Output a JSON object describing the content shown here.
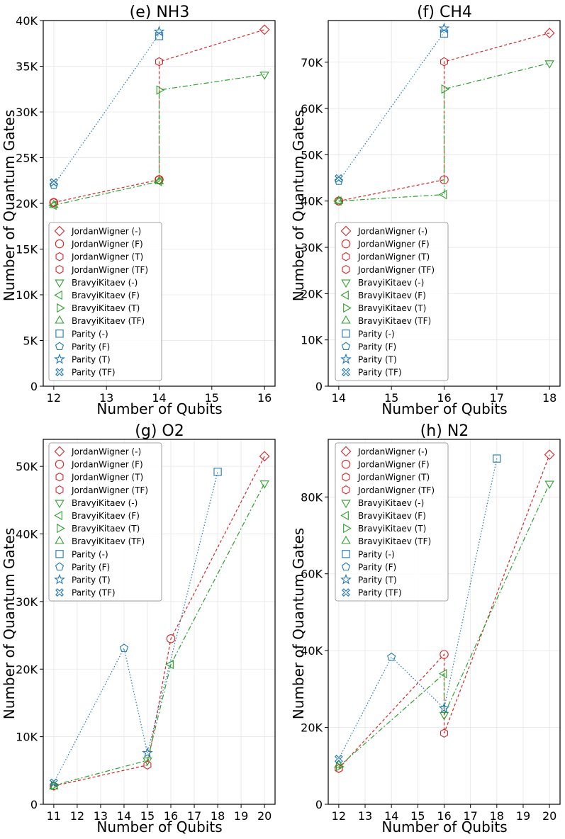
{
  "styles": {
    "JordanWigner": {
      "color": "#d62728",
      "dash": "4,3"
    },
    "BravyiKitaev": {
      "color": "#2ca02c",
      "dash": "7,3,2,3"
    },
    "Parity": {
      "color": "#1f77b4",
      "dash": "1.5,2.5"
    }
  },
  "chart_data": [
    {
      "type": "line",
      "title": "(e) NH3",
      "xlabel": "Number of Qubits",
      "ylabel": "Number of Quantum Gates",
      "xlim": [
        11.8,
        16.2
      ],
      "ylim": [
        0,
        40000
      ],
      "xticks": [
        12,
        13,
        14,
        15,
        16
      ],
      "yticks": [
        0,
        5000,
        10000,
        15000,
        20000,
        25000,
        30000,
        35000,
        40000
      ],
      "ytick_labels": [
        "0",
        "5K",
        "10K",
        "15K",
        "20K",
        "25K",
        "30K",
        "35K",
        "40K"
      ],
      "legend": "bottom-left",
      "series": [
        {
          "name": "JordanWigner (-)",
          "family": "JordanWigner",
          "marker": "diamond",
          "x": [
            16
          ],
          "y": [
            39000
          ]
        },
        {
          "name": "JordanWigner (F)",
          "family": "JordanWigner",
          "marker": "circle",
          "x": [
            12,
            14
          ],
          "y": [
            20100,
            22600
          ]
        },
        {
          "name": "JordanWigner (T)",
          "family": "JordanWigner",
          "marker": "hexagon",
          "x": [
            14
          ],
          "y": [
            35500
          ]
        },
        {
          "name": "JordanWigner (TF)",
          "family": "JordanWigner",
          "marker": "hexagon",
          "x": [
            12,
            14
          ],
          "y": [
            20100,
            22600
          ]
        },
        {
          "name": "BravyiKitaev (-)",
          "family": "BravyiKitaev",
          "marker": "tri_down",
          "x": [
            16
          ],
          "y": [
            34100
          ]
        },
        {
          "name": "BravyiKitaev (F)",
          "family": "BravyiKitaev",
          "marker": "tri_left",
          "x": [
            12,
            14
          ],
          "y": [
            19800,
            22400
          ]
        },
        {
          "name": "BravyiKitaev (T)",
          "family": "BravyiKitaev",
          "marker": "tri_right",
          "x": [
            14
          ],
          "y": [
            32400
          ]
        },
        {
          "name": "BravyiKitaev (TF)",
          "family": "BravyiKitaev",
          "marker": "tri_up",
          "x": [
            12,
            14
          ],
          "y": [
            19800,
            22400
          ]
        },
        {
          "name": "Parity (-)",
          "family": "Parity",
          "marker": "square",
          "x": [
            14
          ],
          "y": [
            38300
          ]
        },
        {
          "name": "Parity (F)",
          "family": "Parity",
          "marker": "pentagon",
          "x": [
            12
          ],
          "y": [
            22000
          ]
        },
        {
          "name": "Parity (T)",
          "family": "Parity",
          "marker": "star",
          "x": [
            14
          ],
          "y": [
            38800
          ]
        },
        {
          "name": "Parity (TF)",
          "family": "Parity",
          "marker": "xfilled",
          "x": [
            12
          ],
          "y": [
            22300
          ]
        }
      ],
      "lines": [
        {
          "family": "JordanWigner",
          "x": [
            12,
            14,
            14,
            16
          ],
          "y": [
            20100,
            22600,
            35500,
            39000
          ]
        },
        {
          "family": "BravyiKitaev",
          "x": [
            12,
            14,
            14,
            16
          ],
          "y": [
            19800,
            22400,
            32400,
            34100
          ]
        },
        {
          "family": "Parity",
          "x": [
            12,
            14
          ],
          "y": [
            22000,
            38500
          ]
        }
      ]
    },
    {
      "type": "line",
      "title": "(f) CH4",
      "xlabel": "Number of Qubits",
      "ylabel": "Number of Quantum Gates",
      "xlim": [
        13.8,
        18.2
      ],
      "ylim": [
        0,
        79000
      ],
      "xticks": [
        14,
        15,
        16,
        17,
        18
      ],
      "yticks": [
        0,
        10000,
        20000,
        30000,
        40000,
        50000,
        60000,
        70000
      ],
      "ytick_labels": [
        "0",
        "10K",
        "20K",
        "30K",
        "40K",
        "50K",
        "60K",
        "70K"
      ],
      "legend": "bottom-left",
      "series": [
        {
          "name": "JordanWigner (-)",
          "family": "JordanWigner",
          "marker": "diamond",
          "x": [
            18
          ],
          "y": [
            76300
          ]
        },
        {
          "name": "JordanWigner (F)",
          "family": "JordanWigner",
          "marker": "circle",
          "x": [
            14,
            16
          ],
          "y": [
            40000,
            44600
          ]
        },
        {
          "name": "JordanWigner (T)",
          "family": "JordanWigner",
          "marker": "hexagon",
          "x": [
            16
          ],
          "y": [
            70100
          ]
        },
        {
          "name": "JordanWigner (TF)",
          "family": "JordanWigner",
          "marker": "hexagon",
          "x": [
            14
          ],
          "y": [
            40000
          ]
        },
        {
          "name": "BravyiKitaev (-)",
          "family": "BravyiKitaev",
          "marker": "tri_down",
          "x": [
            18
          ],
          "y": [
            69800
          ]
        },
        {
          "name": "BravyiKitaev (F)",
          "family": "BravyiKitaev",
          "marker": "tri_left",
          "x": [
            14,
            16
          ],
          "y": [
            40000,
            41400
          ]
        },
        {
          "name": "BravyiKitaev (T)",
          "family": "BravyiKitaev",
          "marker": "tri_right",
          "x": [
            16
          ],
          "y": [
            64200
          ]
        },
        {
          "name": "BravyiKitaev (TF)",
          "family": "BravyiKitaev",
          "marker": "tri_up",
          "x": [
            14
          ],
          "y": [
            40000
          ]
        },
        {
          "name": "Parity (-)",
          "family": "Parity",
          "marker": "square",
          "x": [
            16
          ],
          "y": [
            76200
          ]
        },
        {
          "name": "Parity (F)",
          "family": "Parity",
          "marker": "pentagon",
          "x": [
            14
          ],
          "y": [
            44300
          ]
        },
        {
          "name": "Parity (T)",
          "family": "Parity",
          "marker": "star",
          "x": [
            16
          ],
          "y": [
            77300
          ]
        },
        {
          "name": "Parity (TF)",
          "family": "Parity",
          "marker": "xfilled",
          "x": [
            14
          ],
          "y": [
            44900
          ]
        }
      ],
      "lines": [
        {
          "family": "JordanWigner",
          "x": [
            14,
            16,
            16,
            18
          ],
          "y": [
            40000,
            44600,
            70100,
            76300
          ]
        },
        {
          "family": "BravyiKitaev",
          "x": [
            14,
            16,
            16,
            18
          ],
          "y": [
            40000,
            41400,
            64200,
            69800
          ]
        },
        {
          "family": "Parity",
          "x": [
            14,
            16
          ],
          "y": [
            44300,
            76500
          ]
        }
      ]
    },
    {
      "type": "line",
      "title": "(g) O2",
      "xlabel": "Number of Qubits",
      "ylabel": "Number of Quantum Gates",
      "xlim": [
        10.55,
        20.45
      ],
      "ylim": [
        0,
        54000
      ],
      "xticks": [
        11,
        12,
        13,
        14,
        15,
        16,
        17,
        18,
        19,
        20
      ],
      "yticks": [
        0,
        10000,
        20000,
        30000,
        40000,
        50000
      ],
      "ytick_labels": [
        "0",
        "10K",
        "20K",
        "30K",
        "40K",
        "50K"
      ],
      "legend": "top-left",
      "series": [
        {
          "name": "JordanWigner (-)",
          "family": "JordanWigner",
          "marker": "diamond",
          "x": [
            20
          ],
          "y": [
            51500
          ]
        },
        {
          "name": "JordanWigner (F)",
          "family": "JordanWigner",
          "marker": "circle",
          "x": [
            16
          ],
          "y": [
            24500
          ]
        },
        {
          "name": "JordanWigner (T)",
          "family": "JordanWigner",
          "marker": "hexagon",
          "x": [
            11,
            15
          ],
          "y": [
            2700,
            5800
          ]
        },
        {
          "name": "JordanWigner (TF)",
          "family": "JordanWigner",
          "marker": "hexagon",
          "x": [
            11
          ],
          "y": [
            2700
          ]
        },
        {
          "name": "BravyiKitaev (-)",
          "family": "BravyiKitaev",
          "marker": "tri_down",
          "x": [
            20,
            15
          ],
          "y": [
            47500,
            6500
          ]
        },
        {
          "name": "BravyiKitaev (F)",
          "family": "BravyiKitaev",
          "marker": "tri_left",
          "x": [
            16
          ],
          "y": [
            20700
          ]
        },
        {
          "name": "BravyiKitaev (T)",
          "family": "BravyiKitaev",
          "marker": "tri_right",
          "x": [
            11
          ],
          "y": [
            2800
          ]
        },
        {
          "name": "BravyiKitaev (TF)",
          "family": "BravyiKitaev",
          "marker": "tri_up",
          "x": [
            11
          ],
          "y": [
            2600
          ]
        },
        {
          "name": "Parity (-)",
          "family": "Parity",
          "marker": "square",
          "x": [
            18
          ],
          "y": [
            49200
          ]
        },
        {
          "name": "Parity (F)",
          "family": "Parity",
          "marker": "pentagon",
          "x": [
            14
          ],
          "y": [
            23100
          ]
        },
        {
          "name": "Parity (T)",
          "family": "Parity",
          "marker": "star",
          "x": [
            15
          ],
          "y": [
            7600
          ]
        },
        {
          "name": "Parity (TF)",
          "family": "Parity",
          "marker": "xfilled",
          "x": [
            11
          ],
          "y": [
            3200
          ]
        }
      ],
      "lines": [
        {
          "family": "JordanWigner",
          "x": [
            11,
            15,
            16,
            20
          ],
          "y": [
            2700,
            5800,
            24500,
            51500
          ]
        },
        {
          "family": "BravyiKitaev",
          "x": [
            11,
            15,
            16,
            20
          ],
          "y": [
            2800,
            6500,
            20700,
            47500
          ]
        },
        {
          "family": "Parity",
          "x": [
            11,
            14,
            15,
            18
          ],
          "y": [
            3200,
            23100,
            7600,
            49200
          ]
        }
      ]
    },
    {
      "type": "line",
      "title": "(h) N2",
      "xlabel": "Number of Qubits",
      "ylabel": "Number of Quantum Gates",
      "xlim": [
        11.6,
        20.4
      ],
      "ylim": [
        0,
        95000
      ],
      "xticks": [
        12,
        13,
        14,
        15,
        16,
        17,
        18,
        19,
        20
      ],
      "yticks": [
        0,
        20000,
        40000,
        60000,
        80000
      ],
      "ytick_labels": [
        "0",
        "20K",
        "40K",
        "60K",
        "80K"
      ],
      "legend": "top-left",
      "series": [
        {
          "name": "JordanWigner (-)",
          "family": "JordanWigner",
          "marker": "diamond",
          "x": [
            20
          ],
          "y": [
            91000
          ]
        },
        {
          "name": "JordanWigner (F)",
          "family": "JordanWigner",
          "marker": "circle",
          "x": [
            16
          ],
          "y": [
            39000
          ]
        },
        {
          "name": "JordanWigner (T)",
          "family": "JordanWigner",
          "marker": "hexagon",
          "x": [
            12,
            16
          ],
          "y": [
            9300,
            18500
          ]
        },
        {
          "name": "JordanWigner (TF)",
          "family": "JordanWigner",
          "marker": "hexagon",
          "x": [
            12
          ],
          "y": [
            9300
          ]
        },
        {
          "name": "BravyiKitaev (-)",
          "family": "BravyiKitaev",
          "marker": "tri_down",
          "x": [
            20,
            16
          ],
          "y": [
            83500,
            23300
          ]
        },
        {
          "name": "BravyiKitaev (F)",
          "family": "BravyiKitaev",
          "marker": "tri_left",
          "x": [
            16
          ],
          "y": [
            34000
          ]
        },
        {
          "name": "BravyiKitaev (T)",
          "family": "BravyiKitaev",
          "marker": "tri_right",
          "x": [
            12
          ],
          "y": [
            9800
          ]
        },
        {
          "name": "BravyiKitaev (TF)",
          "family": "BravyiKitaev",
          "marker": "tri_up",
          "x": [
            12
          ],
          "y": [
            10200
          ]
        },
        {
          "name": "Parity (-)",
          "family": "Parity",
          "marker": "square",
          "x": [
            18
          ],
          "y": [
            90000
          ]
        },
        {
          "name": "Parity (F)",
          "family": "Parity",
          "marker": "pentagon",
          "x": [
            14
          ],
          "y": [
            38300
          ]
        },
        {
          "name": "Parity (T)",
          "family": "Parity",
          "marker": "star",
          "x": [
            16
          ],
          "y": [
            25000
          ]
        },
        {
          "name": "Parity (TF)",
          "family": "Parity",
          "marker": "xfilled",
          "x": [
            12
          ],
          "y": [
            11800
          ]
        }
      ],
      "lines": [
        {
          "family": "JordanWigner",
          "x": [
            12,
            16,
            16,
            20
          ],
          "y": [
            9300,
            39000,
            18500,
            91000
          ]
        },
        {
          "family": "BravyiKitaev",
          "x": [
            12,
            16,
            16,
            20
          ],
          "y": [
            9800,
            34000,
            23300,
            83500
          ]
        },
        {
          "family": "Parity",
          "x": [
            12,
            14,
            16,
            18
          ],
          "y": [
            11800,
            38300,
            25000,
            90000
          ]
        }
      ]
    }
  ]
}
